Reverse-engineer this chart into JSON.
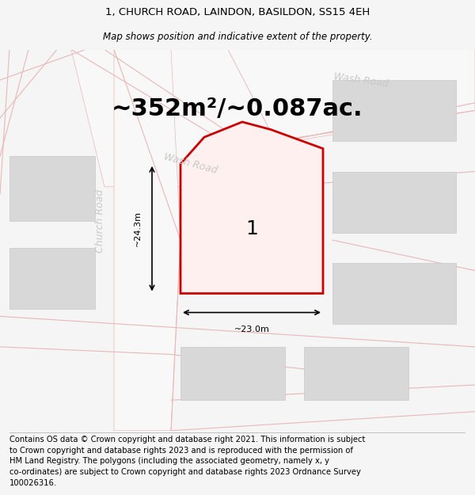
{
  "title_line1": "1, CHURCH ROAD, LAINDON, BASILDON, SS15 4EH",
  "title_line2": "Map shows position and indicative extent of the property.",
  "area_text": "~352m²/~0.087ac.",
  "measurement_h": "~24.3m",
  "measurement_w": "~23.0m",
  "plot_label": "1",
  "road_label_wash1": "Wash Road",
  "road_label_wash2": "Wash Road",
  "road_label_church": "Church Road",
  "footer_text_wrapped": "Contains OS data © Crown copyright and database right 2021. This information is subject\nto Crown copyright and database rights 2023 and is reproduced with the permission of\nHM Land Registry. The polygons (including the associated geometry, namely x, y\nco-ordinates) are subject to Crown copyright and database rights 2023 Ordnance Survey\n100026316.",
  "bg_color": "#f5f5f5",
  "map_bg": "#ffffff",
  "plot_border": "#cc0000",
  "plot_fill": "#fff0f0",
  "road_stripe_color": "#e8b8b8",
  "road_fill": "#f8f8f8",
  "building_fill": "#d8d8d8",
  "building_edge": "#c8c8c8",
  "road_label_color": "#c8c8c8",
  "title_fontsize": 9.5,
  "subtitle_fontsize": 8.5,
  "area_fontsize": 22,
  "footer_fontsize": 7.2,
  "label_fontsize": 9,
  "dim_fontsize": 8,
  "plot_num_fontsize": 18
}
